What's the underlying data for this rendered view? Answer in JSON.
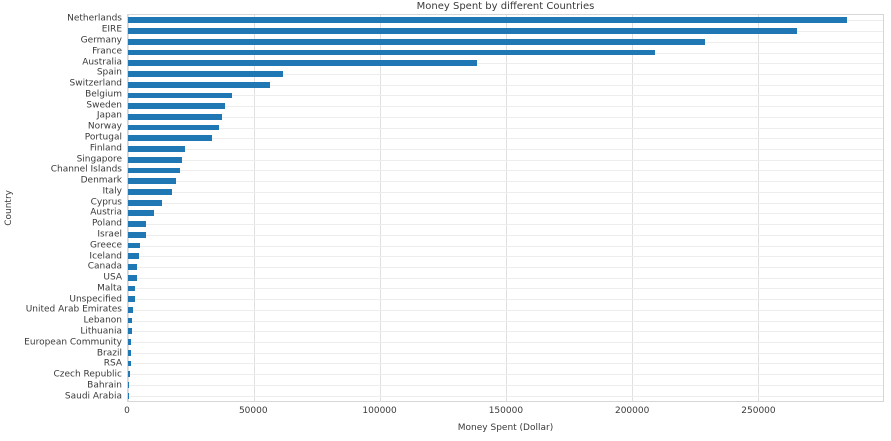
{
  "chart_data": {
    "type": "bar",
    "orientation": "horizontal",
    "title": "Money Spent by different Countries",
    "xlabel": "Money Spent (Dollar)",
    "ylabel": "Country",
    "xlim": [
      0,
      299700
    ],
    "xticks": [
      0,
      50000,
      100000,
      150000,
      200000,
      250000
    ],
    "xtick_labels": [
      "0",
      "50000",
      "100000",
      "150000",
      "200000",
      "250000"
    ],
    "grid": true,
    "legend": false,
    "bar_color": "#1f77b4",
    "vgrid_color": "#e0e0e0",
    "hgrid_color": "#ededed",
    "border_color": "#d6d6d6",
    "text_color": "#3a3a3a",
    "background_color": "#ffffff",
    "categories": [
      "Netherlands",
      "EIRE",
      "Germany",
      "France",
      "Australia",
      "Spain",
      "Switzerland",
      "Belgium",
      "Sweden",
      "Japan",
      "Norway",
      "Portugal",
      "Finland",
      "Singapore",
      "Channel Islands",
      "Denmark",
      "Italy",
      "Cyprus",
      "Austria",
      "Poland",
      "Israel",
      "Greece",
      "Iceland",
      "Canada",
      "USA",
      "Malta",
      "Unspecified",
      "United Arab Emirates",
      "Lebanon",
      "Lithuania",
      "European Community",
      "Brazil",
      "RSA",
      "Czech Republic",
      "Bahrain",
      "Saudi Arabia"
    ],
    "values": [
      285400,
      265500,
      228900,
      209000,
      138500,
      61600,
      56400,
      41200,
      38400,
      37400,
      36200,
      33400,
      22500,
      21300,
      20450,
      19000,
      17500,
      13600,
      10200,
      7330,
      7220,
      4760,
      4310,
      3670,
      3580,
      2730,
      2670,
      1900,
      1690,
      1660,
      1290,
      1140,
      1000,
      825,
      550,
      145
    ]
  }
}
